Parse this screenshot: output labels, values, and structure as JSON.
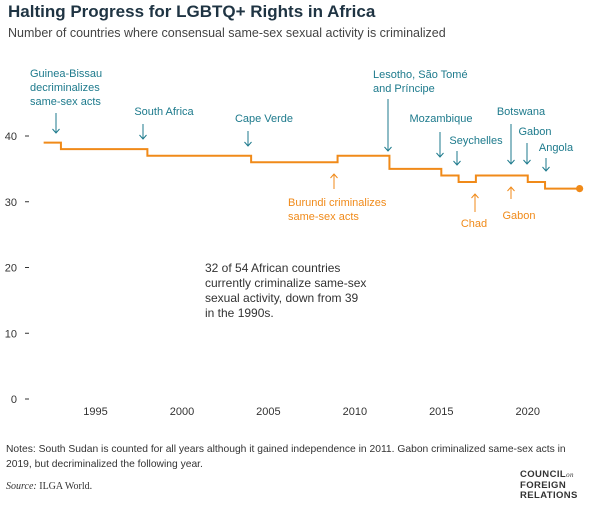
{
  "title": "Halting Progress for LGBTQ+ Rights in Africa",
  "subtitle": "Number of countries where consensual same-sex sexual activity is criminalized",
  "chart_data": {
    "type": "line",
    "title": "",
    "xlabel": "",
    "ylabel": "",
    "xlim": [
      1991.5,
      2023.6
    ],
    "ylim": [
      0,
      40
    ],
    "x_ticks": [
      1995,
      2000,
      2005,
      2010,
      2015,
      2020
    ],
    "y_ticks": [
      0,
      10,
      20,
      30,
      40
    ],
    "grid": false,
    "step": true,
    "series": [
      {
        "color": "#f08a19",
        "x": [
          1992,
          1993,
          1998,
          2004,
          2009,
          2012,
          2015,
          2016,
          2017,
          2019,
          2020,
          2021,
          2023
        ],
        "y": [
          39,
          38,
          37,
          36,
          37,
          35,
          34,
          33,
          34,
          34,
          33,
          32,
          32
        ]
      }
    ],
    "annotations": [
      {
        "id": "guinea-bissau",
        "lines": [
          "Guinea-Bissau",
          "decriminalizes",
          "same-sex acts"
        ],
        "year": 1993,
        "value": 38,
        "color": "#1d7a8c"
      },
      {
        "id": "south-africa",
        "lines": [
          "South Africa"
        ],
        "year": 1998,
        "value": 37,
        "color": "#1d7a8c"
      },
      {
        "id": "cape-verde",
        "lines": [
          "Cape Verde"
        ],
        "year": 2004,
        "value": 36,
        "color": "#1d7a8c"
      },
      {
        "id": "burundi",
        "lines": [
          "Burundi criminalizes",
          "same-sex acts"
        ],
        "year": 2009,
        "value": 37,
        "color": "#f08a19"
      },
      {
        "id": "lesotho",
        "lines": [
          "Lesotho, São Tomé",
          "and Príncipe"
        ],
        "year": 2012,
        "value": 35,
        "color": "#1d7a8c"
      },
      {
        "id": "mozambique",
        "lines": [
          "Mozambique"
        ],
        "year": 2015,
        "value": 34,
        "color": "#1d7a8c"
      },
      {
        "id": "seychelles",
        "lines": [
          "Seychelles"
        ],
        "year": 2016,
        "value": 33,
        "color": "#1d7a8c"
      },
      {
        "id": "chad",
        "lines": [
          "Chad"
        ],
        "year": 2017,
        "value": 34,
        "color": "#f08a19"
      },
      {
        "id": "botswana",
        "lines": [
          "Botswana"
        ],
        "year": 2019,
        "value": 34,
        "color": "#1d7a8c"
      },
      {
        "id": "gabon-crim",
        "lines": [
          "Gabon"
        ],
        "year": 2019,
        "value": 34,
        "color": "#f08a19"
      },
      {
        "id": "gabon-decrim",
        "lines": [
          "Gabon"
        ],
        "year": 2020,
        "value": 33,
        "color": "#1d7a8c"
      },
      {
        "id": "angola",
        "lines": [
          "Angola"
        ],
        "year": 2021,
        "value": 32,
        "color": "#1d7a8c"
      }
    ],
    "callout": [
      "32 of 54 African countries",
      "currently criminalize same-sex",
      "sexual activity, down from 39",
      "in the 1990s."
    ]
  },
  "notes": "Notes: South Sudan is counted for all years although it gained independence in 2011. Gabon criminalized same-sex acts in 2019, but decriminalized the following year.",
  "source_label": "Source:",
  "source_text": "ILGA World.",
  "logo": {
    "line1": "COUNCIL",
    "on": "on",
    "line2": "FOREIGN",
    "line3": "RELATIONS"
  },
  "colors": {
    "line": "#f08a19",
    "decrim": "#1d7a8c",
    "axis_text": "#333333"
  }
}
